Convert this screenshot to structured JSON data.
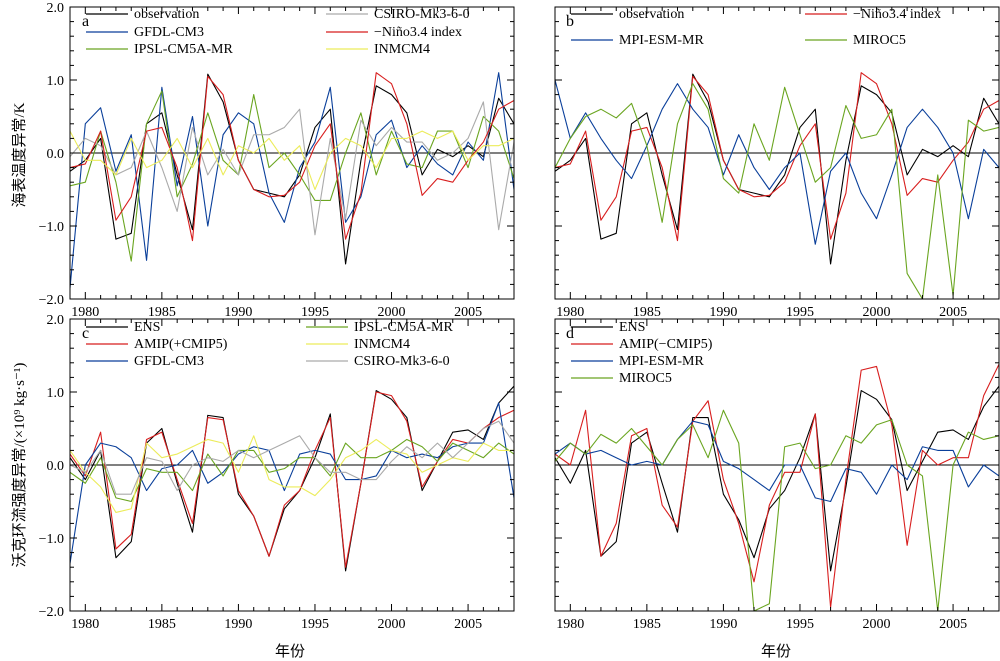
{
  "colors": {
    "observation": "#000000",
    "ens": "#000000",
    "gfdl": "#0a3f9a",
    "ipsl": "#6aa520",
    "csiro": "#aaaaaa",
    "nino": "#d81e1e",
    "inmcm": "#ecec5a",
    "mpi": "#0a3f9a",
    "miroc": "#6aa520",
    "amip": "#d81e1e"
  },
  "axes": {
    "xlabel": "年份",
    "ylabel_top": "海表温度异常/K",
    "ylabel_bottom": "沃克环流强度异常/(×10⁹ kg·s⁻¹)",
    "x_ticks": [
      "1980",
      "1985",
      "1990",
      "1995",
      "2000",
      "2005"
    ],
    "y_ticks": [
      "2.0",
      "1.0",
      "0.0",
      "−1.0",
      "−2.0"
    ]
  },
  "chart_data": [
    {
      "id": "a",
      "type": "line",
      "panel_letter": "a",
      "xlim": [
        1979,
        2008
      ],
      "ylim": [
        -2,
        2
      ],
      "ylabel": "海表温度异常/K",
      "x": [
        1979,
        1980,
        1981,
        1982,
        1983,
        1984,
        1985,
        1986,
        1987,
        1988,
        1989,
        1990,
        1991,
        1992,
        1993,
        1994,
        1995,
        1996,
        1997,
        1998,
        1999,
        2000,
        2001,
        2002,
        2003,
        2004,
        2005,
        2006,
        2007,
        2008
      ],
      "series": [
        {
          "name": "observation",
          "color": "#000000",
          "values": [
            -0.25,
            -0.1,
            0.2,
            -1.18,
            -1.1,
            0.4,
            0.55,
            -0.3,
            -1.05,
            1.08,
            0.7,
            -0.1,
            -0.5,
            -0.55,
            -0.6,
            -0.3,
            0.35,
            0.6,
            -1.52,
            -0.1,
            0.92,
            0.8,
            0.55,
            -0.3,
            0.05,
            -0.05,
            0.1,
            -0.05,
            0.75,
            0.4
          ]
        },
        {
          "name": "GFDL-CM3",
          "color": "#0a3f9a",
          "values": [
            -1.85,
            0.4,
            0.62,
            -0.25,
            0.25,
            -1.47,
            0.9,
            -0.45,
            0.5,
            -1.0,
            0.25,
            0.55,
            0.4,
            -0.55,
            -0.95,
            -0.2,
            0.15,
            0.9,
            -0.95,
            -0.6,
            0.25,
            0.45,
            -0.2,
            0.1,
            -0.15,
            -0.3,
            0.15,
            -0.1,
            1.1,
            -0.5
          ]
        },
        {
          "name": "IPSL-CM5A-MR",
          "color": "#6aa520",
          "values": [
            -0.45,
            -0.4,
            0.3,
            -0.4,
            -1.48,
            0.4,
            0.85,
            -0.6,
            -0.15,
            0.55,
            -0.1,
            -0.3,
            0.8,
            -0.2,
            0.0,
            -0.3,
            -0.65,
            -0.65,
            0.0,
            0.55,
            -0.3,
            0.3,
            -0.15,
            -0.2,
            0.3,
            0.3,
            -0.2,
            0.5,
            0.3,
            -0.35
          ]
        },
        {
          "name": "CSIRO-Mk3-6-0",
          "color": "#aaaaaa",
          "values": [
            -0.05,
            0.2,
            0.1,
            -0.3,
            -0.2,
            0.3,
            -0.2,
            -0.8,
            0.35,
            -0.3,
            0.05,
            -0.3,
            0.25,
            0.25,
            0.35,
            0.6,
            -1.12,
            0.2,
            -0.9,
            0.45,
            0.1,
            0.35,
            0.15,
            0.15,
            -0.1,
            0.0,
            0.2,
            0.7,
            -1.05,
            0.15
          ]
        },
        {
          "name": "−Niño3.4 index",
          "color": "#d81e1e",
          "values": [
            -0.2,
            -0.15,
            0.3,
            -0.92,
            -0.6,
            0.3,
            0.35,
            -0.2,
            -1.2,
            1.05,
            0.8,
            -0.1,
            -0.5,
            -0.6,
            -0.58,
            -0.4,
            0.1,
            0.4,
            -1.18,
            -0.55,
            1.1,
            0.95,
            0.4,
            -0.58,
            -0.35,
            -0.4,
            -0.1,
            0.15,
            0.6,
            0.72
          ]
        },
        {
          "name": "INMCM4",
          "color": "#ecec5a",
          "values": [
            0.3,
            -0.1,
            -0.1,
            -0.3,
            0.2,
            -0.2,
            -0.1,
            0.2,
            -0.2,
            0.2,
            -0.3,
            0.1,
            0.0,
            0.2,
            -0.1,
            0.1,
            -0.5,
            0.0,
            0.2,
            0.1,
            -0.2,
            0.2,
            0.2,
            0.3,
            0.2,
            0.3,
            -0.1,
            0.1,
            0.1,
            0.2
          ]
        }
      ],
      "legend": [
        {
          "label": "observation",
          "color": "#000000"
        },
        {
          "label": "GFDL-CM3",
          "color": "#0a3f9a"
        },
        {
          "label": "IPSL-CM5A-MR",
          "color": "#6aa520"
        },
        {
          "label": "CSIRO-Mk3-6-0",
          "color": "#aaaaaa"
        },
        {
          "label": "−Niño3.4 index",
          "color": "#d81e1e"
        },
        {
          "label": "INMCM4",
          "color": "#ecec5a"
        }
      ]
    },
    {
      "id": "b",
      "type": "line",
      "panel_letter": "b",
      "xlim": [
        1979,
        2008
      ],
      "ylim": [
        -2,
        2
      ],
      "x": [
        1979,
        1980,
        1981,
        1982,
        1983,
        1984,
        1985,
        1986,
        1987,
        1988,
        1989,
        1990,
        1991,
        1992,
        1993,
        1994,
        1995,
        1996,
        1997,
        1998,
        1999,
        2000,
        2001,
        2002,
        2003,
        2004,
        2005,
        2006,
        2007,
        2008
      ],
      "series": [
        {
          "name": "observation",
          "color": "#000000",
          "values": [
            -0.25,
            -0.1,
            0.2,
            -1.18,
            -1.1,
            0.4,
            0.55,
            -0.3,
            -1.05,
            1.08,
            0.7,
            -0.1,
            -0.5,
            -0.55,
            -0.6,
            -0.3,
            0.35,
            0.6,
            -1.52,
            -0.1,
            0.92,
            0.8,
            0.55,
            -0.3,
            0.05,
            -0.05,
            0.1,
            -0.05,
            0.75,
            0.4
          ]
        },
        {
          "name": "−Niño3.4 index",
          "color": "#d81e1e",
          "values": [
            -0.2,
            -0.15,
            0.3,
            -0.92,
            -0.6,
            0.3,
            0.35,
            -0.2,
            -1.2,
            1.05,
            0.8,
            -0.1,
            -0.5,
            -0.6,
            -0.58,
            -0.4,
            0.1,
            0.4,
            -1.18,
            -0.55,
            1.1,
            0.95,
            0.4,
            -0.58,
            -0.35,
            -0.4,
            -0.1,
            0.15,
            0.6,
            0.72
          ]
        },
        {
          "name": "MPI-ESM-MR",
          "color": "#0a3f9a",
          "values": [
            1.0,
            0.2,
            0.55,
            0.2,
            -0.1,
            -0.35,
            0.1,
            0.6,
            0.95,
            0.6,
            0.35,
            -0.3,
            0.25,
            -0.2,
            -0.5,
            -0.2,
            0.0,
            -1.25,
            -0.25,
            0.0,
            -0.55,
            -0.9,
            -0.3,
            0.35,
            0.6,
            0.35,
            0.0,
            -0.9,
            0.05,
            -0.2
          ]
        },
        {
          "name": "MIROC5",
          "color": "#6aa520",
          "values": [
            -0.2,
            0.2,
            0.5,
            0.6,
            0.48,
            0.68,
            0.1,
            -0.95,
            0.4,
            0.95,
            0.6,
            -0.35,
            -0.55,
            0.4,
            -0.1,
            0.9,
            0.25,
            -0.4,
            -0.2,
            0.65,
            0.2,
            0.25,
            0.6,
            -1.65,
            -2.0,
            -0.3,
            -1.95,
            0.45,
            0.3,
            0.35
          ]
        }
      ],
      "legend": [
        {
          "label": "observation",
          "color": "#000000"
        },
        {
          "label": "MPI-ESM-MR",
          "color": "#0a3f9a"
        },
        {
          "label": "−Niño3.4 index",
          "color": "#d81e1e"
        },
        {
          "label": "MIROC5",
          "color": "#6aa520"
        }
      ]
    },
    {
      "id": "c",
      "type": "line",
      "panel_letter": "c",
      "xlim": [
        1979,
        2008
      ],
      "ylim": [
        -2,
        2
      ],
      "ylabel": "沃克环流强度异常/(×10⁹ kg·s⁻¹)",
      "x": [
        1979,
        1980,
        1981,
        1982,
        1983,
        1984,
        1985,
        1986,
        1987,
        1988,
        1989,
        1990,
        1991,
        1992,
        1993,
        1994,
        1995,
        1996,
        1997,
        1998,
        1999,
        2000,
        2001,
        2002,
        2003,
        2004,
        2005,
        2006,
        2007,
        2008
      ],
      "series": [
        {
          "name": "ENS",
          "color": "#000000",
          "values": [
            0.1,
            -0.2,
            0.2,
            -1.27,
            -1.05,
            0.3,
            0.5,
            -0.25,
            -0.92,
            0.68,
            0.65,
            -0.4,
            -0.7,
            -1.25,
            -0.6,
            -0.35,
            0.1,
            0.7,
            -1.45,
            -0.25,
            1.02,
            0.9,
            0.65,
            -0.35,
            0.05,
            0.45,
            0.48,
            0.35,
            0.85,
            1.08
          ]
        },
        {
          "name": "AMIP(+CMIP5)",
          "color": "#d81e1e",
          "values": [
            0.15,
            -0.15,
            0.45,
            -1.15,
            -0.95,
            0.35,
            0.45,
            -0.2,
            -0.8,
            0.65,
            0.62,
            -0.35,
            -0.7,
            -1.25,
            -0.55,
            -0.35,
            0.2,
            0.65,
            -1.4,
            -0.25,
            1.0,
            0.95,
            0.6,
            -0.3,
            0.05,
            0.35,
            0.3,
            0.5,
            0.65,
            0.75
          ]
        },
        {
          "name": "GFDL-CM3",
          "color": "#0a3f9a",
          "values": [
            -1.35,
            0.0,
            0.3,
            0.25,
            0.1,
            -0.35,
            -0.05,
            0.0,
            0.2,
            -0.25,
            -0.1,
            0.15,
            0.25,
            0.2,
            -0.35,
            0.15,
            0.2,
            0.15,
            -0.2,
            -0.2,
            -0.15,
            0.2,
            0.1,
            0.15,
            0.1,
            0.25,
            0.3,
            0.3,
            0.85,
            -0.45
          ]
        },
        {
          "name": "IPSL-CM5A-MR",
          "color": "#6aa520",
          "values": [
            -0.1,
            -0.25,
            0.1,
            -0.45,
            -0.5,
            -0.05,
            -0.1,
            -0.1,
            -0.35,
            0.15,
            -0.15,
            0.2,
            0.2,
            -0.1,
            -0.05,
            0.1,
            0.1,
            -0.15,
            0.3,
            0.1,
            0.1,
            0.2,
            0.35,
            0.25,
            0.05,
            0.3,
            0.2,
            0.1,
            0.3,
            0.15
          ]
        },
        {
          "name": "INMCM4",
          "color": "#ecec5a",
          "values": [
            0.2,
            -0.1,
            -0.3,
            -0.65,
            -0.6,
            0.3,
            0.1,
            0.15,
            0.25,
            0.35,
            0.3,
            -0.1,
            0.4,
            -0.2,
            -0.3,
            -0.3,
            -0.42,
            -0.2,
            0.1,
            0.2,
            0.35,
            0.2,
            0.15,
            -0.1,
            0.0,
            0.1,
            0.05,
            0.3,
            0.2,
            0.2
          ]
        },
        {
          "name": "CSIRO-Mk3-6-0",
          "color": "#aaaaaa",
          "values": [
            0.0,
            -0.1,
            0.2,
            -0.4,
            -0.4,
            0.1,
            0.05,
            -0.35,
            0.0,
            0.1,
            0.05,
            0.2,
            0.1,
            0.2,
            0.3,
            0.4,
            0.1,
            -0.1,
            -0.1,
            -0.2,
            -0.2,
            0.05,
            0.25,
            0.1,
            0.3,
            0.1,
            0.3,
            0.5,
            0.6,
            0.3
          ]
        }
      ],
      "legend": [
        {
          "label": "ENS",
          "color": "#000000"
        },
        {
          "label": "AMIP(+CMIP5)",
          "color": "#d81e1e"
        },
        {
          "label": "GFDL-CM3",
          "color": "#0a3f9a"
        },
        {
          "label": "IPSL-CM5A-MR",
          "color": "#6aa520"
        },
        {
          "label": "INMCM4",
          "color": "#ecec5a"
        },
        {
          "label": "CSIRO-Mk3-6-0",
          "color": "#aaaaaa"
        }
      ]
    },
    {
      "id": "d",
      "type": "line",
      "panel_letter": "d",
      "xlim": [
        1979,
        2008
      ],
      "ylim": [
        -2,
        2
      ],
      "x": [
        1979,
        1980,
        1981,
        1982,
        1983,
        1984,
        1985,
        1986,
        1987,
        1988,
        1989,
        1990,
        1991,
        1992,
        1993,
        1994,
        1995,
        1996,
        1997,
        1998,
        1999,
        2000,
        2001,
        2002,
        2003,
        2004,
        2005,
        2006,
        2007,
        2008
      ],
      "series": [
        {
          "name": "ENS",
          "color": "#000000",
          "values": [
            0.1,
            -0.25,
            0.2,
            -1.25,
            -1.05,
            0.3,
            0.45,
            -0.25,
            -0.92,
            0.65,
            0.65,
            -0.4,
            -0.75,
            -1.27,
            -0.6,
            -0.35,
            0.1,
            0.7,
            -1.45,
            -0.3,
            1.02,
            0.9,
            0.62,
            -0.35,
            0.05,
            0.45,
            0.48,
            0.35,
            0.8,
            1.08
          ]
        },
        {
          "name": "AMIP(−CMIP5)",
          "color": "#d81e1e",
          "values": [
            0.15,
            0.0,
            0.75,
            -1.25,
            -0.8,
            0.4,
            0.5,
            -0.55,
            -0.85,
            0.6,
            0.88,
            -0.2,
            -0.8,
            -1.6,
            -0.55,
            -0.1,
            -0.1,
            0.7,
            -1.95,
            -0.2,
            1.3,
            1.35,
            0.55,
            -1.1,
            0.2,
            0.0,
            0.1,
            0.1,
            0.95,
            1.38
          ]
        },
        {
          "name": "MPI-ESM-MR",
          "color": "#0a3f9a",
          "values": [
            0.15,
            0.3,
            0.15,
            0.2,
            0.1,
            0.0,
            0.05,
            0.0,
            0.35,
            0.6,
            0.55,
            0.05,
            -0.05,
            -0.2,
            -0.35,
            0.0,
            0.0,
            -0.45,
            -0.5,
            -0.05,
            -0.1,
            -0.4,
            0.0,
            -0.2,
            0.25,
            0.2,
            0.2,
            -0.3,
            0.0,
            -0.15
          ]
        },
        {
          "name": "MIROC5",
          "color": "#6aa520",
          "values": [
            0.05,
            0.3,
            0.15,
            0.42,
            0.3,
            0.5,
            0.25,
            0.0,
            0.35,
            0.55,
            0.1,
            0.75,
            0.3,
            -2.0,
            -1.9,
            0.25,
            0.3,
            -0.05,
            0.0,
            0.4,
            0.3,
            0.55,
            0.62,
            0.0,
            -0.15,
            -2.0,
            0.0,
            0.45,
            0.35,
            0.4
          ]
        }
      ],
      "legend": [
        {
          "label": "ENS",
          "color": "#000000"
        },
        {
          "label": "AMIP(−CMIP5)",
          "color": "#d81e1e"
        },
        {
          "label": "MPI-ESM-MR",
          "color": "#0a3f9a"
        },
        {
          "label": "MIROC5",
          "color": "#6aa520"
        }
      ]
    }
  ]
}
